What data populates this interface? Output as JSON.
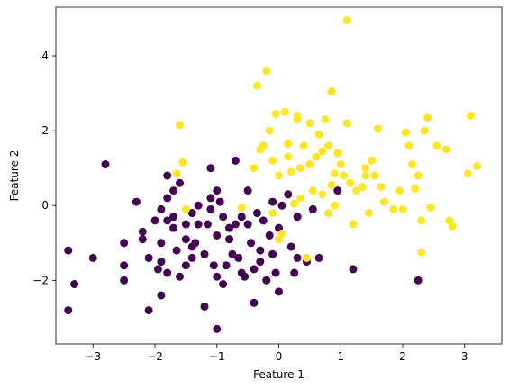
{
  "chart_data": {
    "type": "scatter",
    "title": "",
    "xlabel": "Feature 1",
    "ylabel": "Feature 2",
    "xlim": [
      -3.6,
      3.6
    ],
    "ylim": [
      -3.7,
      5.3
    ],
    "xticks": [
      -3,
      -2,
      -1,
      0,
      1,
      2,
      3
    ],
    "yticks": [
      -2,
      0,
      2,
      4
    ],
    "grid": false,
    "legend": false,
    "series": [
      {
        "color": "#440154",
        "points": [
          [
            -3.4,
            -1.2
          ],
          [
            -3.3,
            -2.1
          ],
          [
            -3.4,
            -2.8
          ],
          [
            -3.0,
            -1.4
          ],
          [
            -2.8,
            1.1
          ],
          [
            -2.5,
            -1.0
          ],
          [
            -2.5,
            -1.6
          ],
          [
            -2.5,
            -2.0
          ],
          [
            -2.3,
            0.1
          ],
          [
            -2.2,
            -0.7
          ],
          [
            -2.2,
            -0.9
          ],
          [
            -2.1,
            -1.4
          ],
          [
            -2.1,
            -2.8
          ],
          [
            -2.0,
            -0.4
          ],
          [
            -1.9,
            -0.1
          ],
          [
            -1.9,
            -1.0
          ],
          [
            -1.9,
            -1.5
          ],
          [
            -1.9,
            -2.4
          ],
          [
            -1.95,
            -1.7
          ],
          [
            -1.8,
            0.2
          ],
          [
            -1.8,
            0.8
          ],
          [
            -1.8,
            -0.4
          ],
          [
            -1.8,
            -1.8
          ],
          [
            -1.7,
            0.4
          ],
          [
            -1.7,
            -0.3
          ],
          [
            -1.7,
            -0.6
          ],
          [
            -1.6,
            -1.9
          ],
          [
            -1.65,
            -1.2
          ],
          [
            -1.6,
            0.6
          ],
          [
            -1.5,
            -0.9
          ],
          [
            -1.5,
            -1.6
          ],
          [
            -1.5,
            -0.5
          ],
          [
            -1.4,
            -1.1
          ],
          [
            -1.4,
            -0.2
          ],
          [
            -1.4,
            -1.4
          ],
          [
            -1.35,
            -1.0
          ],
          [
            -1.3,
            -0.5
          ],
          [
            -1.3,
            0.0
          ],
          [
            -1.2,
            -2.7
          ],
          [
            -1.2,
            -1.3
          ],
          [
            -1.15,
            -0.5
          ],
          [
            -1.1,
            1.0
          ],
          [
            -1.1,
            -0.1
          ],
          [
            -1.1,
            0.2
          ],
          [
            -1.05,
            -1.6
          ],
          [
            -1.0,
            -0.8
          ],
          [
            -1.0,
            0.4
          ],
          [
            -1.0,
            -1.9
          ],
          [
            -1.0,
            -3.3
          ],
          [
            -0.95,
            0.1
          ],
          [
            -0.9,
            -0.3
          ],
          [
            -0.9,
            -2.1
          ],
          [
            -0.85,
            -1.6
          ],
          [
            -0.8,
            -0.6
          ],
          [
            -0.8,
            -0.9
          ],
          [
            -0.75,
            -1.3
          ],
          [
            -0.7,
            1.2
          ],
          [
            -0.7,
            -0.5
          ],
          [
            -0.65,
            -1.4
          ],
          [
            -0.6,
            -0.3
          ],
          [
            -0.6,
            -1.8
          ],
          [
            -0.55,
            -1.9
          ],
          [
            -0.5,
            0.4
          ],
          [
            -0.5,
            -0.5
          ],
          [
            -0.45,
            -1.0
          ],
          [
            -0.4,
            -1.7
          ],
          [
            -0.4,
            -2.6
          ],
          [
            -0.35,
            -0.2
          ],
          [
            -0.3,
            -1.2
          ],
          [
            -0.3,
            -1.5
          ],
          [
            -0.25,
            -0.4
          ],
          [
            -0.2,
            -2.0
          ],
          [
            -0.15,
            -0.8
          ],
          [
            -0.1,
            0.1
          ],
          [
            -0.1,
            -1.3
          ],
          [
            -0.05,
            -1.8
          ],
          [
            -0.0,
            -2.3
          ],
          [
            -0.0,
            -0.6
          ],
          [
            0.05,
            0.0
          ],
          [
            0.15,
            0.3
          ],
          [
            0.2,
            -1.1
          ],
          [
            0.25,
            -1.8
          ],
          [
            0.3,
            -0.3
          ],
          [
            0.3,
            -1.4
          ],
          [
            0.45,
            -1.5
          ],
          [
            0.55,
            -0.1
          ],
          [
            0.65,
            -1.4
          ],
          [
            0.95,
            0.4
          ],
          [
            1.2,
            -1.7
          ],
          [
            2.25,
            -2.0
          ]
        ]
      },
      {
        "color": "#fde725",
        "points": [
          [
            -1.65,
            0.85
          ],
          [
            -1.6,
            2.15
          ],
          [
            -1.55,
            1.15
          ],
          [
            -1.5,
            -0.1
          ],
          [
            -0.6,
            -0.05
          ],
          [
            -0.4,
            1.0
          ],
          [
            -0.35,
            3.2
          ],
          [
            -0.3,
            1.5
          ],
          [
            -0.25,
            1.6
          ],
          [
            -0.2,
            3.6
          ],
          [
            -0.15,
            2.0
          ],
          [
            -0.1,
            1.2
          ],
          [
            -0.1,
            -0.2
          ],
          [
            -0.05,
            2.45
          ],
          [
            0.0,
            0.8
          ],
          [
            0.0,
            -0.9
          ],
          [
            0.05,
            -0.75
          ],
          [
            0.1,
            2.5
          ],
          [
            0.15,
            1.3
          ],
          [
            0.15,
            1.65
          ],
          [
            0.2,
            0.9
          ],
          [
            0.25,
            0.05
          ],
          [
            0.3,
            2.3
          ],
          [
            0.3,
            2.4
          ],
          [
            0.35,
            0.2
          ],
          [
            0.4,
            1.6
          ],
          [
            0.45,
            -1.4
          ],
          [
            0.5,
            2.2
          ],
          [
            0.5,
            1.1
          ],
          [
            0.55,
            0.4
          ],
          [
            0.6,
            1.3
          ],
          [
            0.65,
            1.9
          ],
          [
            0.7,
            0.3
          ],
          [
            0.75,
            2.3
          ],
          [
            0.8,
            1.6
          ],
          [
            0.8,
            -0.2
          ],
          [
            0.85,
            3.05
          ],
          [
            0.9,
            0.0
          ],
          [
            0.95,
            1.4
          ],
          [
            1.0,
            1.1
          ],
          [
            1.05,
            0.8
          ],
          [
            1.1,
            4.95
          ],
          [
            1.1,
            2.2
          ],
          [
            1.15,
            0.6
          ],
          [
            1.2,
            -0.5
          ],
          [
            1.25,
            0.4
          ],
          [
            1.35,
            0.5
          ],
          [
            1.4,
            1.0
          ],
          [
            1.45,
            -0.2
          ],
          [
            1.5,
            1.2
          ],
          [
            1.55,
            0.8
          ],
          [
            1.6,
            2.05
          ],
          [
            1.65,
            0.5
          ],
          [
            1.7,
            0.1
          ],
          [
            1.85,
            -0.1
          ],
          [
            1.95,
            0.4
          ],
          [
            2.0,
            -0.1
          ],
          [
            2.05,
            1.95
          ],
          [
            2.1,
            1.6
          ],
          [
            2.15,
            1.1
          ],
          [
            2.2,
            0.45
          ],
          [
            2.25,
            0.8
          ],
          [
            2.3,
            -0.4
          ],
          [
            2.35,
            2.0
          ],
          [
            2.4,
            2.35
          ],
          [
            2.45,
            -0.05
          ],
          [
            2.55,
            1.6
          ],
          [
            2.7,
            1.5
          ],
          [
            2.75,
            -0.4
          ],
          [
            2.8,
            -0.55
          ],
          [
            3.05,
            0.85
          ],
          [
            3.1,
            2.4
          ],
          [
            3.2,
            1.05
          ],
          [
            2.3,
            -1.25
          ],
          [
            0.85,
            0.55
          ],
          [
            0.35,
            1.0
          ],
          [
            0.9,
            0.85
          ],
          [
            1.4,
            0.8
          ],
          [
            0.7,
            1.45
          ]
        ]
      }
    ]
  }
}
